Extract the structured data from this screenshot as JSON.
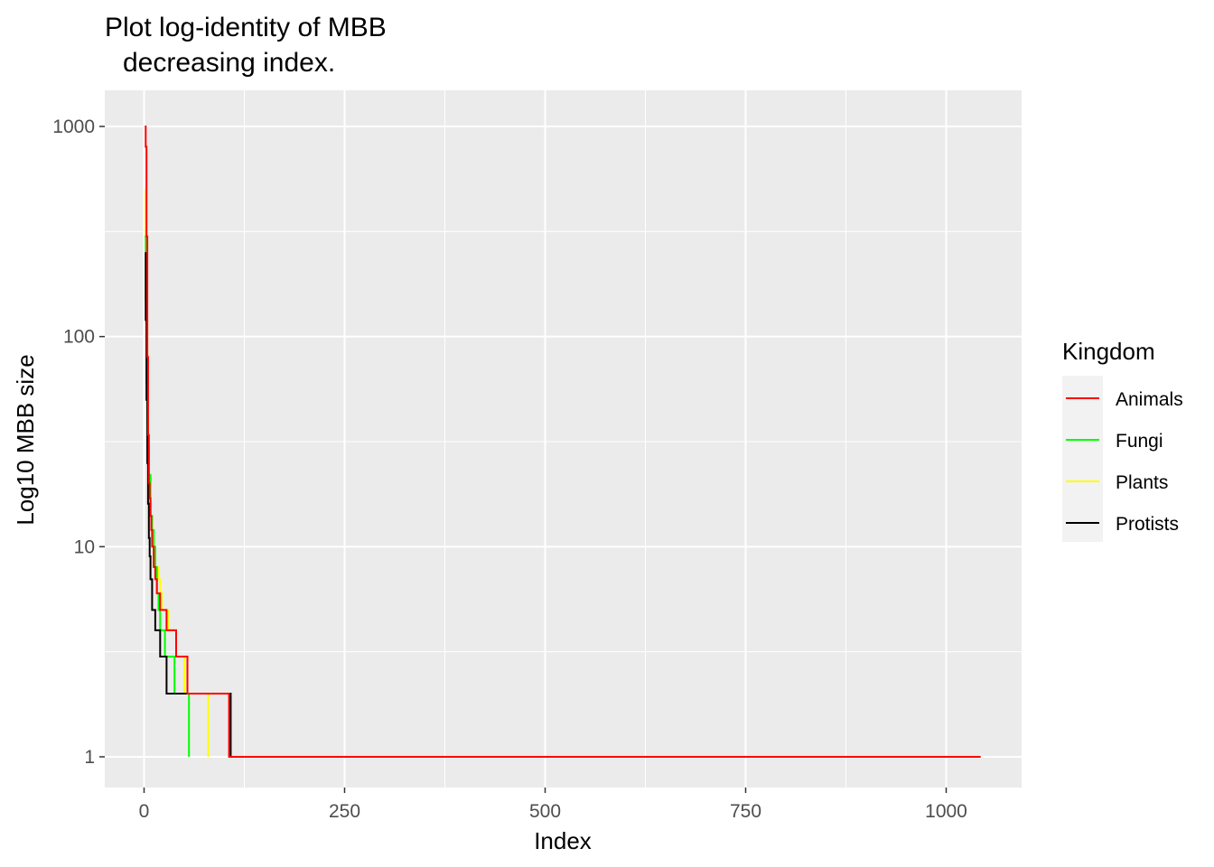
{
  "chart_data": {
    "type": "line",
    "title_line1": "Plot log-identity of MBB",
    "title_line2": "decreasing index.",
    "xlabel": "Index",
    "ylabel": "Log10 MBB size",
    "y_scale": "log10",
    "xlim": [
      -50,
      1095
    ],
    "ylim": [
      0.75,
      1500
    ],
    "x_ticks": [
      0,
      250,
      500,
      750,
      1000
    ],
    "x_tick_labels": [
      "0",
      "250",
      "500",
      "750",
      "1000"
    ],
    "x_minor_ticks": [
      125,
      375,
      625,
      875
    ],
    "y_ticks": [
      1,
      10,
      100,
      1000
    ],
    "y_tick_labels": [
      "1",
      "10",
      "100",
      "1000"
    ],
    "y_minor_ticks": [
      3.162,
      31.62,
      316.2
    ],
    "grid": true,
    "panel_background": "#ebebeb",
    "grid_color": "#ffffff",
    "legend": {
      "title": "Kingdom",
      "position": "right",
      "items": [
        {
          "label": "Animals",
          "color": "#ff0000"
        },
        {
          "label": "Fungi",
          "color": "#00ff00"
        },
        {
          "label": "Plants",
          "color": "#ffff00"
        },
        {
          "label": "Protists",
          "color": "#000000"
        }
      ]
    },
    "series": [
      {
        "name": "Plants",
        "color": "#ffff00",
        "x": [
          1,
          2,
          3,
          4,
          5,
          6,
          8,
          10,
          12,
          14,
          16,
          18,
          20,
          22,
          26,
          30,
          36,
          40,
          44,
          50,
          58,
          66,
          72,
          80
        ],
        "y": [
          500,
          300,
          120,
          40,
          28,
          20,
          14,
          11,
          9,
          8,
          8,
          7,
          6,
          5,
          5,
          4,
          4,
          3,
          3,
          2,
          2,
          2,
          2,
          1
        ]
      },
      {
        "name": "Fungi",
        "color": "#00ff00",
        "x": [
          1,
          2,
          3,
          4,
          5,
          6,
          8,
          10,
          12,
          14,
          16,
          18,
          20,
          22,
          26,
          30,
          34,
          38,
          42,
          46,
          52,
          56
        ],
        "y": [
          300,
          150,
          60,
          38,
          30,
          22,
          14,
          12,
          10,
          8,
          6,
          5,
          4,
          4,
          3,
          3,
          3,
          2,
          2,
          2,
          2,
          1
        ]
      },
      {
        "name": "Protists",
        "color": "#000000",
        "x": [
          1,
          2,
          3,
          4,
          5,
          6,
          7,
          8,
          10,
          12,
          14,
          16,
          18,
          20,
          24,
          28,
          30,
          34,
          38,
          42,
          48,
          54,
          64,
          74,
          84,
          96,
          108
        ],
        "y": [
          250,
          120,
          50,
          25,
          16,
          11,
          9,
          7,
          5,
          5,
          4,
          4,
          4,
          3,
          3,
          2,
          2,
          2,
          2,
          2,
          2,
          2,
          2,
          2,
          2,
          2,
          1
        ]
      },
      {
        "name": "Animals",
        "color": "#ff0000",
        "x": [
          1,
          2,
          3,
          4,
          5,
          6,
          7,
          8,
          9,
          10,
          12,
          14,
          16,
          18,
          20,
          24,
          28,
          32,
          36,
          40,
          44,
          48,
          54,
          60,
          66,
          72,
          78,
          84,
          90,
          96,
          106,
          150,
          300,
          500,
          750,
          1000,
          1043
        ],
        "y": [
          1000,
          800,
          300,
          80,
          34,
          20,
          17,
          14,
          12,
          10,
          8,
          7,
          6,
          6,
          5,
          5,
          4,
          4,
          4,
          3,
          3,
          3,
          2,
          2,
          2,
          2,
          2,
          2,
          2,
          2,
          1,
          1,
          1,
          1,
          1,
          1,
          1
        ]
      }
    ]
  }
}
